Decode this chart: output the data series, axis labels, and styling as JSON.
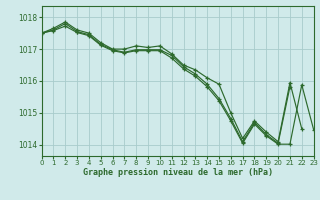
{
  "title": "Graphe pression niveau de la mer (hPa)",
  "background_color": "#d0eaea",
  "grid_color": "#a8cccc",
  "line_color": "#2d6a2d",
  "xlim": [
    0,
    23
  ],
  "ylim": [
    1013.65,
    1018.35
  ],
  "yticks": [
    1014,
    1015,
    1016,
    1017,
    1018
  ],
  "xticks": [
    0,
    1,
    2,
    3,
    4,
    5,
    6,
    7,
    8,
    9,
    10,
    11,
    12,
    13,
    14,
    15,
    16,
    17,
    18,
    19,
    20,
    21,
    22,
    23
  ],
  "lines": [
    {
      "x": [
        0,
        1,
        2,
        3,
        4,
        5,
        6,
        7,
        8,
        9,
        10,
        11,
        12,
        13,
        14,
        15,
        16,
        17,
        18,
        19,
        20,
        21,
        22
      ],
      "y": [
        1017.5,
        1017.65,
        1017.85,
        1017.6,
        1017.5,
        1017.2,
        1017.0,
        1017.0,
        1017.1,
        1017.05,
        1017.1,
        1016.85,
        1016.5,
        1016.35,
        1016.1,
        1015.9,
        1015.0,
        1014.2,
        1014.75,
        1014.4,
        1014.1,
        1015.95,
        1014.5
      ]
    },
    {
      "x": [
        0,
        1,
        2,
        3,
        4,
        5,
        6,
        7,
        8,
        9,
        10,
        11,
        12,
        13,
        14,
        15,
        16,
        17,
        18,
        19,
        20,
        21
      ],
      "y": [
        1017.5,
        1017.6,
        1017.8,
        1017.55,
        1017.45,
        1017.15,
        1016.98,
        1016.9,
        1016.98,
        1016.98,
        1016.98,
        1016.8,
        1016.45,
        1016.22,
        1015.9,
        1015.45,
        1014.82,
        1014.1,
        1014.7,
        1014.32,
        1014.05,
        1015.82
      ]
    },
    {
      "x": [
        0,
        1,
        2,
        3,
        4,
        5,
        6,
        7,
        8,
        9,
        10,
        11,
        12,
        13,
        14,
        15,
        16,
        17,
        18,
        19,
        20,
        21,
        22,
        23
      ],
      "y": [
        1017.5,
        1017.58,
        1017.72,
        1017.52,
        1017.42,
        1017.12,
        1016.95,
        1016.88,
        1016.95,
        1016.95,
        1016.95,
        1016.72,
        1016.38,
        1016.15,
        1015.82,
        1015.38,
        1014.75,
        1014.05,
        1014.65,
        1014.28,
        1014.02,
        1014.02,
        1015.88,
        1014.48
      ]
    }
  ]
}
